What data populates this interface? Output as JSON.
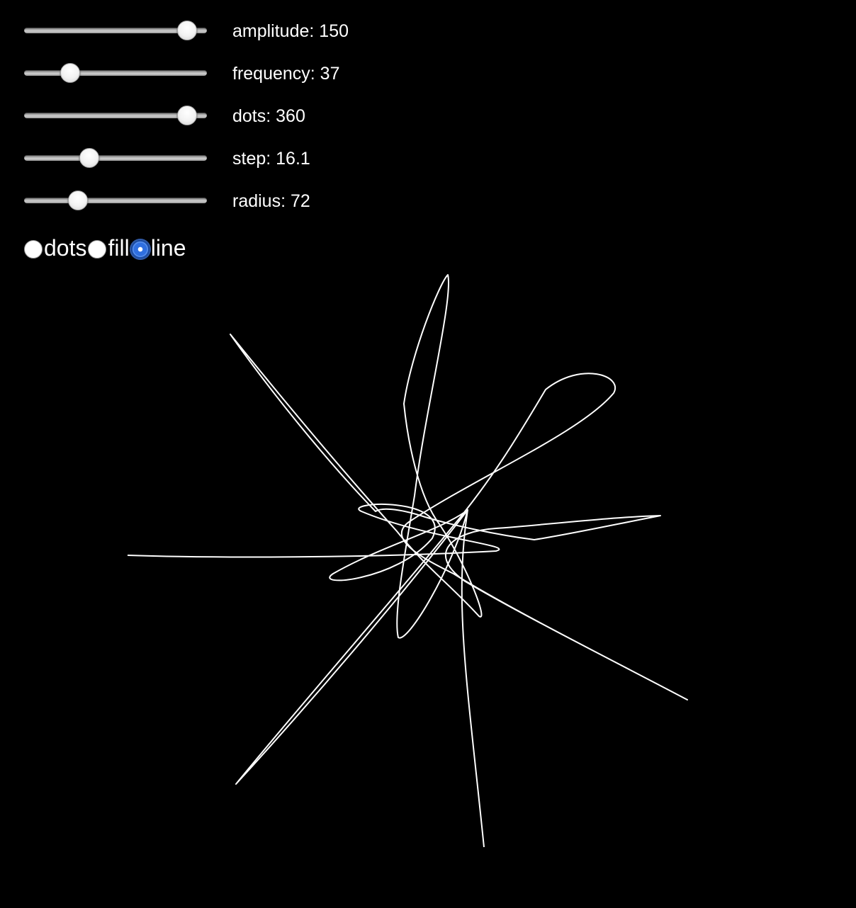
{
  "sliders": [
    {
      "name": "amplitude",
      "label": "amplitude: 150",
      "fraction": 0.94
    },
    {
      "name": "frequency",
      "label": "frequency: 37",
      "fraction": 0.22
    },
    {
      "name": "dots",
      "label": "dots: 360",
      "fraction": 0.94
    },
    {
      "name": "step",
      "label": "step: 16.1",
      "fraction": 0.34
    },
    {
      "name": "radius",
      "label": "radius: 72",
      "fraction": 0.27
    }
  ],
  "modes": {
    "options": [
      {
        "label": "dots",
        "checked": false
      },
      {
        "label": "fill",
        "checked": false
      },
      {
        "label": "line",
        "checked": true
      }
    ]
  },
  "colors": {
    "background": "#000000",
    "stroke": "#ffffff",
    "accent": "#2f6fe0"
  }
}
